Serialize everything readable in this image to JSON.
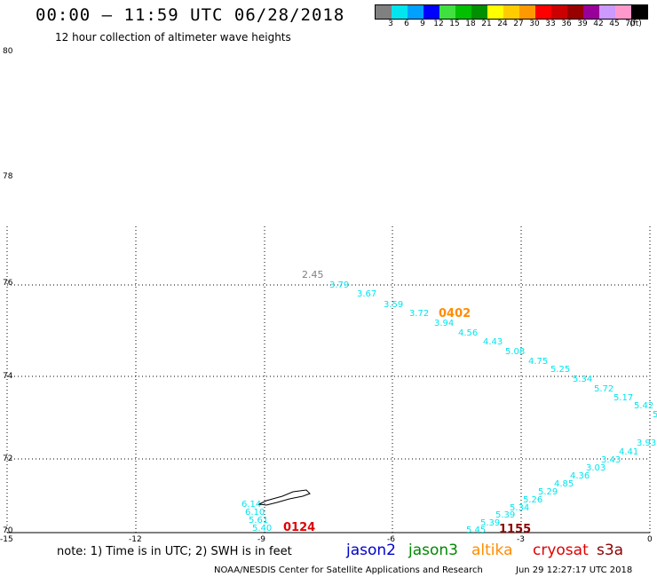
{
  "header": {
    "title": "00:00 – 11:59 UTC 06/28/2018",
    "subtitle": "12 hour collection of altimeter wave heights"
  },
  "colorbar": {
    "colors": [
      "#808080",
      "#00e5ee",
      "#00a0ff",
      "#0000ff",
      "#40e040",
      "#00c000",
      "#009000",
      "#ffff00",
      "#ffcc00",
      "#ff9900",
      "#ff0000",
      "#cc0000",
      "#990000",
      "#990099",
      "#cc99ff",
      "#ff99cc",
      "#000000"
    ],
    "labels": [
      "3",
      "6",
      "9",
      "12",
      "15",
      "18",
      "21",
      "24",
      "27",
      "30",
      "33",
      "36",
      "39",
      "42",
      "45",
      "70",
      "(ft)"
    ]
  },
  "axes": {
    "lat_labels": [
      "80",
      "78",
      "76",
      "74",
      "72",
      "70"
    ],
    "lon_labels": [
      "-15",
      "-12",
      "-9",
      "-6",
      "-3",
      "0"
    ]
  },
  "passes": [
    {
      "time": "0402",
      "color": "#ff8c00"
    },
    {
      "time": "0124",
      "color": "#e00000"
    },
    {
      "time": "1155",
      "color": "#8b0000"
    }
  ],
  "swh_values": {
    "gray": [
      "2.45"
    ],
    "track_a": [
      "3.79",
      "3.67",
      "3.59",
      "3.72",
      "3.94",
      "4.56",
      "4.43",
      "5.08",
      "4.75",
      "5.25",
      "5.34",
      "5.72",
      "5.17",
      "5.42",
      "5"
    ],
    "track_b": [
      "3.93",
      "4.41",
      "3.43",
      "3.03",
      "4.36",
      "4.85",
      "5.29",
      "5.26",
      "5.34",
      "5.39",
      "5.39",
      "5.45"
    ],
    "track_c": [
      "6.14",
      "6.10",
      "5.61",
      "5.40"
    ]
  },
  "notes": {
    "note": "note: 1) Time is in UTC; 2) SWH is in feet",
    "footer_left": "NOAA/NESDIS Center for Satellite Applications and Research",
    "footer_right": "Jun 29 12:27:17 UTC 2018"
  },
  "legend": [
    {
      "name": "jason2",
      "color": "#0000cc"
    },
    {
      "name": "jason3",
      "color": "#008800"
    },
    {
      "name": "altika",
      "color": "#ff8c00"
    },
    {
      "name": "cryosat",
      "color": "#e00000"
    },
    {
      "name": "s3a",
      "color": "#8b0000"
    }
  ],
  "colors": {
    "track": "#00e5ee",
    "gray": "#808080",
    "grid": "#000000"
  }
}
